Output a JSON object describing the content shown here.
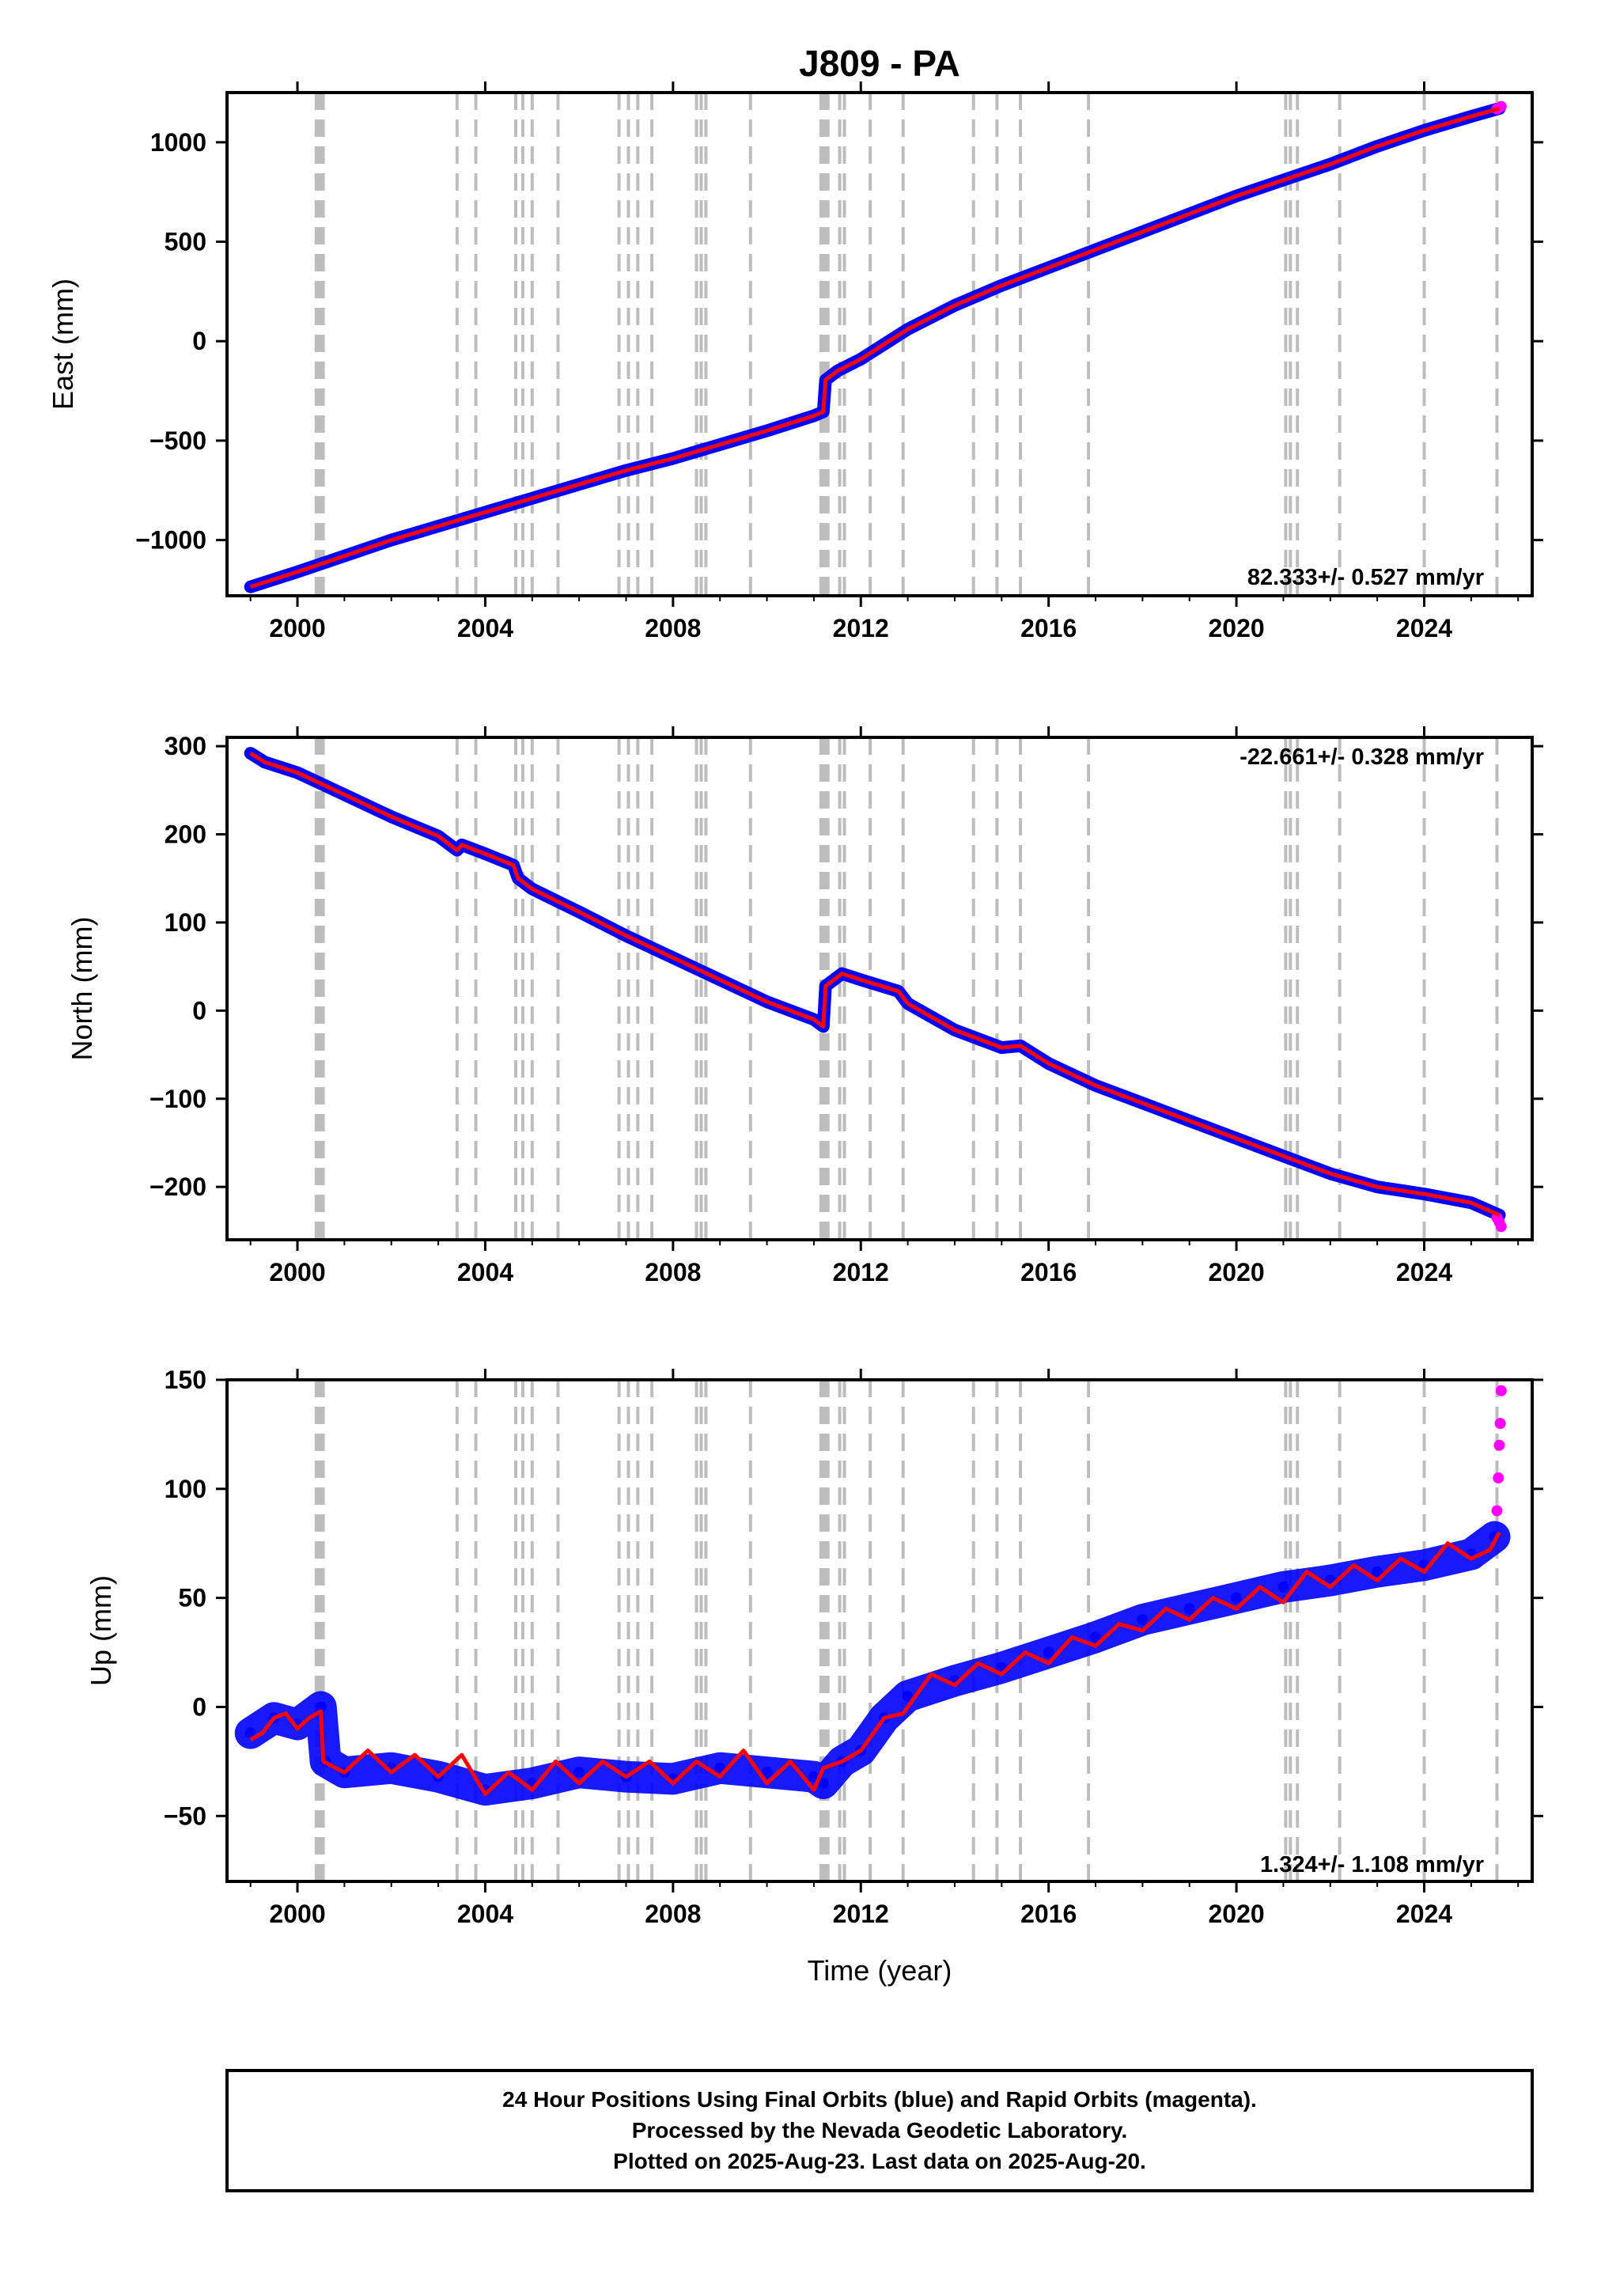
{
  "title": "J809 - PA",
  "xlabel": "Time (year)",
  "x_tick_labels": [
    "2000",
    "2004",
    "2008",
    "2012",
    "2016",
    "2020",
    "2024"
  ],
  "colors": {
    "final_orbits": "#0000ff",
    "rapid_orbits": "#ff00ff",
    "model_fit": "#ff0000",
    "event_lines": "#bdbdbd"
  },
  "footer": {
    "line1": "24 Hour Positions Using Final Orbits (blue) and Rapid Orbits (magenta).",
    "line2": "Processed by the Nevada Geodetic Laboratory.",
    "line3": "Plotted on 2025-Aug-23. Last data on 2025-Aug-20."
  },
  "chart_data": [
    {
      "type": "scatter",
      "ylabel": "East (mm)",
      "rate_label": "82.333+/- 0.527 mm/yr",
      "xlim": [
        1998.5,
        2026.3
      ],
      "ylim": [
        -1280,
        1250
      ],
      "y_ticks": [
        -1000,
        -500,
        0,
        500,
        1000
      ],
      "y_tick_labels": [
        "−1000",
        "−500",
        "0",
        "500",
        "1000"
      ],
      "x_ticks": [
        2000,
        2004,
        2008,
        2012,
        2016,
        2020,
        2024
      ],
      "event_lines": [
        2000.4,
        2000.45,
        2000.5,
        2000.55,
        2003.4,
        2003.8,
        2004.65,
        2004.8,
        2005.0,
        2005.55,
        2006.85,
        2007.05,
        2007.25,
        2007.55,
        2008.5,
        2008.6,
        2008.7,
        2009.65,
        2011.15,
        2011.2,
        2011.25,
        2011.3,
        2011.55,
        2011.65,
        2012.2,
        2012.9,
        2014.4,
        2014.9,
        2015.4,
        2016.85,
        2021.05,
        2021.15,
        2021.3,
        2022.2,
        2024.0,
        2025.55
      ],
      "series": [
        {
          "name": "Final Orbits",
          "color": "#0000ff",
          "x": [
            1999.0,
            2000.0,
            2001.0,
            2002.0,
            2003.0,
            2004.0,
            2005.0,
            2006.0,
            2007.0,
            2008.0,
            2009.0,
            2010.0,
            2011.0,
            2011.2,
            2011.25,
            2011.5,
            2012.0,
            2013.0,
            2014.0,
            2015.0,
            2016.0,
            2017.0,
            2018.0,
            2019.0,
            2020.0,
            2021.0,
            2022.0,
            2023.0,
            2024.0,
            2025.0,
            2025.6
          ],
          "y": [
            -1235,
            -1160,
            -1080,
            -1000,
            -930,
            -860,
            -790,
            -720,
            -650,
            -590,
            -520,
            -450,
            -375,
            -355,
            -195,
            -150,
            -90,
            60,
            180,
            280,
            370,
            460,
            550,
            640,
            730,
            810,
            890,
            980,
            1060,
            1130,
            1170
          ]
        },
        {
          "name": "Rapid Orbits",
          "color": "#ff00ff",
          "x": [
            2025.55,
            2025.6,
            2025.64
          ],
          "y": [
            1168,
            1175,
            1180
          ]
        },
        {
          "name": "Model Fit",
          "color": "#ff0000",
          "x": [
            1999.0,
            2000.0,
            2001.0,
            2002.0,
            2003.0,
            2004.0,
            2005.0,
            2006.0,
            2007.0,
            2008.0,
            2009.0,
            2010.0,
            2011.0,
            2011.2,
            2011.25,
            2011.5,
            2012.0,
            2013.0,
            2014.0,
            2015.0,
            2016.0,
            2017.0,
            2018.0,
            2019.0,
            2020.0,
            2021.0,
            2022.0,
            2023.0,
            2024.0,
            2025.0,
            2025.6
          ],
          "y": [
            -1235,
            -1160,
            -1080,
            -1000,
            -930,
            -860,
            -790,
            -720,
            -650,
            -590,
            -520,
            -450,
            -375,
            -355,
            -195,
            -150,
            -90,
            60,
            180,
            280,
            370,
            460,
            550,
            640,
            730,
            810,
            890,
            980,
            1060,
            1130,
            1170
          ]
        }
      ]
    },
    {
      "type": "scatter",
      "ylabel": "North (mm)",
      "rate_label": "-22.661+/- 0.328 mm/yr",
      "xlim": [
        1998.5,
        2026.3
      ],
      "ylim": [
        -260,
        310
      ],
      "y_ticks": [
        -200,
        -100,
        0,
        100,
        200,
        300
      ],
      "y_tick_labels": [
        "−200",
        "−100",
        "0",
        "100",
        "200",
        "300"
      ],
      "x_ticks": [
        2000,
        2004,
        2008,
        2012,
        2016,
        2020,
        2024
      ],
      "event_lines": [
        2000.4,
        2000.45,
        2000.5,
        2000.55,
        2003.4,
        2003.8,
        2004.65,
        2004.8,
        2005.0,
        2005.55,
        2006.85,
        2007.05,
        2007.25,
        2007.55,
        2008.5,
        2008.6,
        2008.7,
        2009.65,
        2011.15,
        2011.2,
        2011.25,
        2011.3,
        2011.55,
        2011.65,
        2012.2,
        2012.9,
        2014.4,
        2014.9,
        2015.4,
        2016.85,
        2021.05,
        2021.15,
        2021.3,
        2022.2,
        2024.0,
        2025.55
      ],
      "series": [
        {
          "name": "Final Orbits",
          "color": "#0000ff",
          "x": [
            1999.0,
            1999.3,
            2000.0,
            2001.0,
            2002.0,
            2003.0,
            2003.4,
            2003.5,
            2004.0,
            2004.6,
            2004.7,
            2005.0,
            2006.0,
            2007.0,
            2008.0,
            2009.0,
            2010.0,
            2011.0,
            2011.2,
            2011.25,
            2011.6,
            2012.0,
            2012.8,
            2013.0,
            2014.0,
            2015.0,
            2015.4,
            2016.0,
            2017.0,
            2018.0,
            2019.0,
            2020.0,
            2021.0,
            2022.0,
            2023.0,
            2024.0,
            2025.0,
            2025.6
          ],
          "y": [
            292,
            282,
            270,
            245,
            220,
            198,
            182,
            188,
            178,
            165,
            150,
            138,
            112,
            85,
            60,
            35,
            10,
            -10,
            -18,
            28,
            42,
            35,
            22,
            8,
            -22,
            -42,
            -40,
            -60,
            -85,
            -105,
            -125,
            -145,
            -165,
            -185,
            -200,
            -208,
            -218,
            -232
          ]
        },
        {
          "name": "Rapid Orbits",
          "color": "#ff00ff",
          "x": [
            2025.55,
            2025.6,
            2025.64
          ],
          "y": [
            -235,
            -240,
            -245
          ]
        },
        {
          "name": "Model Fit",
          "color": "#ff0000",
          "x": [
            1999.0,
            1999.3,
            2000.0,
            2001.0,
            2002.0,
            2003.0,
            2003.4,
            2003.5,
            2004.0,
            2004.6,
            2004.7,
            2005.0,
            2006.0,
            2007.0,
            2008.0,
            2009.0,
            2010.0,
            2011.0,
            2011.2,
            2011.25,
            2011.6,
            2012.0,
            2012.8,
            2013.0,
            2014.0,
            2015.0,
            2015.4,
            2016.0,
            2017.0,
            2018.0,
            2019.0,
            2020.0,
            2021.0,
            2022.0,
            2023.0,
            2024.0,
            2025.0,
            2025.6
          ],
          "y": [
            292,
            282,
            270,
            245,
            220,
            198,
            182,
            188,
            178,
            165,
            150,
            138,
            112,
            85,
            60,
            35,
            10,
            -10,
            -18,
            28,
            42,
            35,
            22,
            8,
            -22,
            -42,
            -40,
            -60,
            -85,
            -105,
            -125,
            -145,
            -165,
            -185,
            -200,
            -208,
            -218,
            -232
          ]
        }
      ]
    },
    {
      "type": "scatter",
      "ylabel": "Up (mm)",
      "rate_label": "1.324+/- 1.108 mm/yr",
      "xlim": [
        1998.5,
        2026.3
      ],
      "ylim": [
        -80,
        150
      ],
      "y_ticks": [
        -50,
        0,
        50,
        100,
        150
      ],
      "y_tick_labels": [
        "−50",
        "0",
        "50",
        "100",
        "150"
      ],
      "x_ticks": [
        2000,
        2004,
        2008,
        2012,
        2016,
        2020,
        2024
      ],
      "event_lines": [
        2000.4,
        2000.45,
        2000.5,
        2000.55,
        2003.4,
        2003.8,
        2004.65,
        2004.8,
        2005.0,
        2005.55,
        2006.85,
        2007.05,
        2007.25,
        2007.55,
        2008.5,
        2008.6,
        2008.7,
        2009.65,
        2011.15,
        2011.2,
        2011.25,
        2011.3,
        2011.55,
        2011.65,
        2012.2,
        2012.9,
        2014.4,
        2014.9,
        2015.4,
        2016.85,
        2021.05,
        2021.15,
        2021.3,
        2022.2,
        2024.0,
        2025.55
      ],
      "series": [
        {
          "name": "Final Orbits",
          "color": "#0000ff",
          "x": [
            1999.0,
            1999.5,
            2000.0,
            2000.5,
            2000.6,
            2001.0,
            2002.0,
            2003.0,
            2004.0,
            2005.0,
            2006.0,
            2007.0,
            2008.0,
            2009.0,
            2010.0,
            2011.0,
            2011.2,
            2011.6,
            2012.0,
            2012.5,
            2013.0,
            2014.0,
            2015.0,
            2016.0,
            2017.0,
            2018.0,
            2019.0,
            2020.0,
            2021.0,
            2022.0,
            2023.0,
            2024.0,
            2025.0,
            2025.5
          ],
          "y": [
            -12,
            -5,
            -8,
            0,
            -25,
            -30,
            -28,
            -32,
            -38,
            -35,
            -30,
            -32,
            -33,
            -28,
            -30,
            -32,
            -35,
            -25,
            -20,
            -5,
            5,
            12,
            18,
            25,
            32,
            40,
            45,
            50,
            55,
            58,
            62,
            65,
            70,
            78
          ]
        },
        {
          "name": "Rapid Orbits",
          "color": "#ff00ff",
          "x": [
            2025.55,
            2025.58,
            2025.6,
            2025.62,
            2025.64
          ],
          "y": [
            90,
            105,
            120,
            130,
            145
          ]
        },
        {
          "name": "Model Fit",
          "color": "#ff0000",
          "x": [
            1999.0,
            1999.25,
            1999.5,
            1999.75,
            2000.0,
            2000.25,
            2000.5,
            2000.55,
            2001.0,
            2001.5,
            2002.0,
            2002.5,
            2003.0,
            2003.5,
            2004.0,
            2004.5,
            2005.0,
            2005.5,
            2006.0,
            2006.5,
            2007.0,
            2007.5,
            2008.0,
            2008.5,
            2009.0,
            2009.5,
            2010.0,
            2010.5,
            2011.0,
            2011.2,
            2011.6,
            2012.0,
            2012.5,
            2012.9,
            2013.5,
            2014.0,
            2014.5,
            2015.0,
            2015.5,
            2016.0,
            2016.5,
            2017.0,
            2017.5,
            2018.0,
            2018.5,
            2019.0,
            2019.5,
            2020.0,
            2020.5,
            2021.0,
            2021.5,
            2022.0,
            2022.5,
            2023.0,
            2023.5,
            2024.0,
            2024.5,
            2025.0,
            2025.4,
            2025.6
          ],
          "y": [
            -15,
            -12,
            -5,
            -3,
            -10,
            -5,
            -2,
            -25,
            -30,
            -20,
            -30,
            -22,
            -32,
            -22,
            -40,
            -30,
            -38,
            -25,
            -35,
            -25,
            -32,
            -25,
            -35,
            -25,
            -32,
            -20,
            -35,
            -25,
            -38,
            -28,
            -25,
            -20,
            -5,
            -3,
            15,
            10,
            20,
            15,
            25,
            20,
            32,
            28,
            38,
            35,
            45,
            40,
            50,
            45,
            55,
            48,
            62,
            55,
            65,
            58,
            68,
            62,
            75,
            68,
            72,
            80
          ]
        }
      ]
    }
  ]
}
